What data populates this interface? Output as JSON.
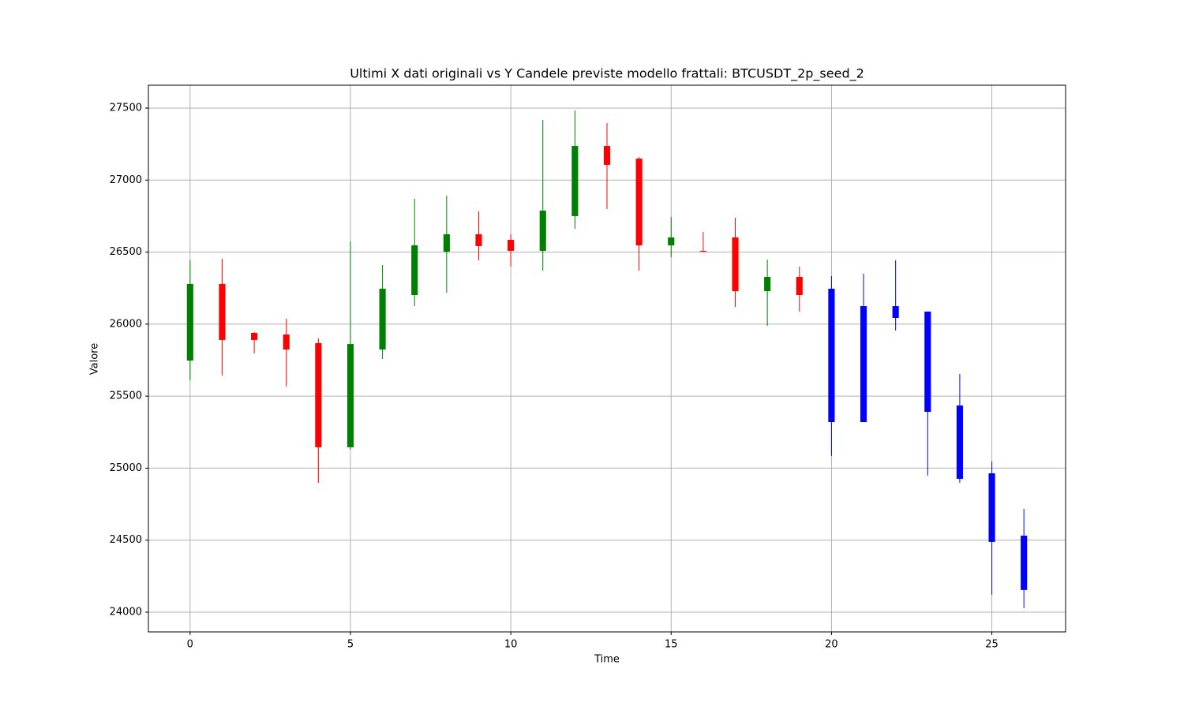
{
  "chart_data": {
    "type": "candlestick",
    "title": "Ultimi X dati originali vs Y Candele previste modello frattali: BTCUSDT_2p_seed_2",
    "x_label": "Time",
    "y_label": "Valore",
    "x": [
      0,
      1,
      2,
      3,
      4,
      5,
      6,
      7,
      8,
      9,
      10,
      11,
      12,
      13,
      14,
      15,
      16,
      17,
      18,
      19,
      20,
      21,
      22,
      23,
      24,
      25,
      26
    ],
    "open": [
      25747,
      26279,
      25939,
      25928,
      25868,
      25145,
      25824,
      26202,
      26503,
      26624,
      26585,
      26509,
      26750,
      27237,
      27149,
      26547,
      26509,
      26602,
      26229,
      26328,
      26246,
      26125,
      26125,
      26087,
      25435,
      24964,
      24531
    ],
    "high": [
      26443,
      26454,
      25945,
      26038,
      25901,
      26574,
      26410,
      26870,
      26892,
      26783,
      26624,
      27418,
      27484,
      27396,
      27160,
      26744,
      26640,
      26739,
      26448,
      26399,
      26334,
      26350,
      26443,
      26087,
      25654,
      25046,
      24718
    ],
    "low": [
      25610,
      25643,
      25797,
      25567,
      24898,
      25128,
      25758,
      26125,
      26218,
      26443,
      26399,
      26372,
      26662,
      26799,
      26372,
      26465,
      26503,
      26120,
      25988,
      26087,
      25085,
      25320,
      25956,
      24948,
      24898,
      24121,
      24028
    ],
    "close": [
      26279,
      25890,
      25890,
      25824,
      25145,
      25862,
      26246,
      26547,
      26624,
      26542,
      26509,
      26788,
      27237,
      27106,
      26547,
      26602,
      26503,
      26229,
      26328,
      26202,
      25320,
      25320,
      26043,
      25391,
      24926,
      24488,
      24154
    ],
    "colors": [
      "green",
      "red",
      "red",
      "red",
      "red",
      "green",
      "green",
      "green",
      "green",
      "red",
      "red",
      "green",
      "green",
      "red",
      "red",
      "green",
      "red",
      "red",
      "green",
      "red",
      "blue",
      "blue",
      "blue",
      "blue",
      "blue",
      "blue",
      "blue"
    ],
    "xlim": [
      -1.3,
      27.3
    ],
    "ylim": [
      23863,
      27659
    ],
    "xticks": [
      0,
      5,
      10,
      15,
      20,
      25
    ],
    "yticks": [
      24000,
      24500,
      25000,
      25500,
      26000,
      26500,
      27000,
      27500
    ],
    "grid": true
  }
}
